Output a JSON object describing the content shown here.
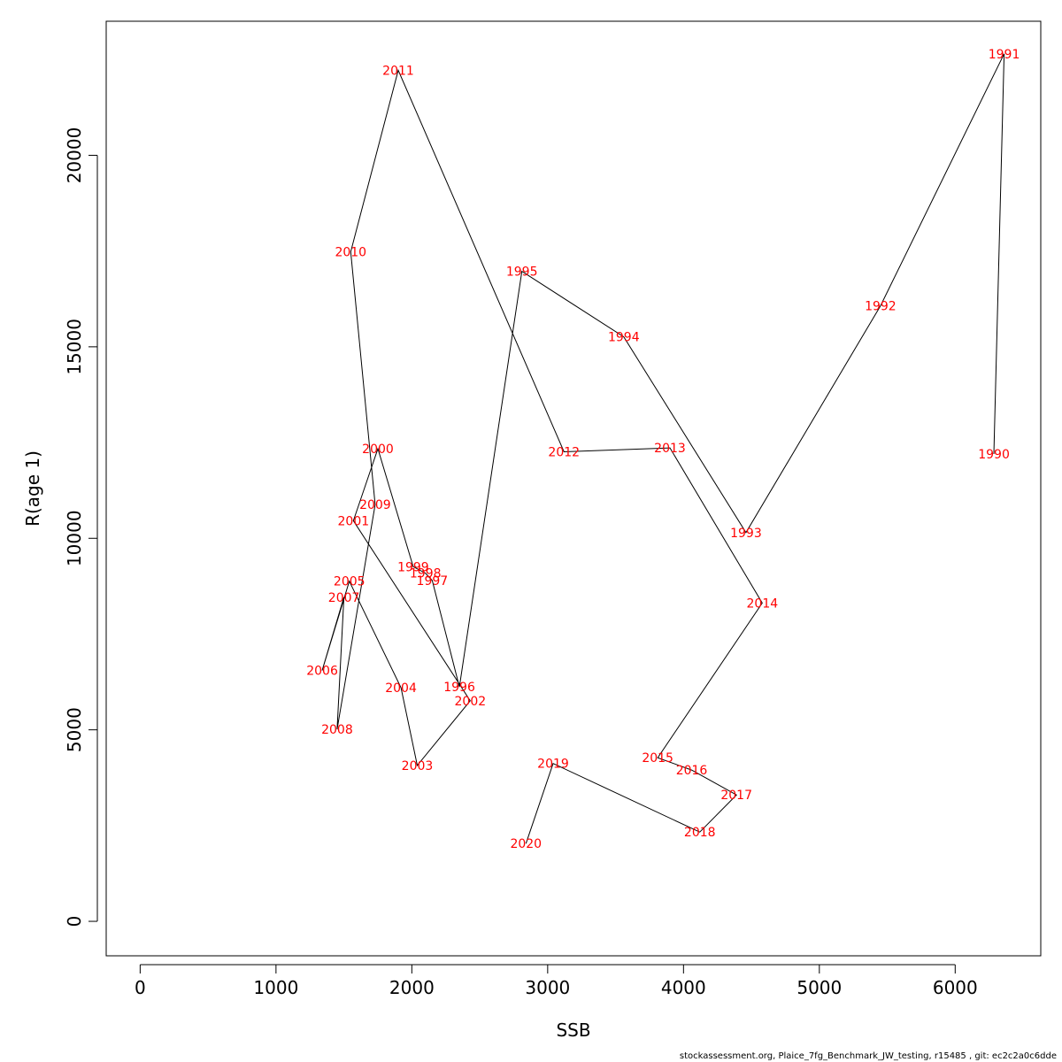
{
  "chart_data": {
    "type": "line",
    "xlabel": "SSB",
    "ylabel": "R(age 1)",
    "xlim": [
      -250,
      6630
    ],
    "ylim": [
      -900,
      23500
    ],
    "xticks": [
      0,
      1000,
      2000,
      3000,
      4000,
      5000,
      6000
    ],
    "yticks": [
      0,
      5000,
      10000,
      15000,
      20000
    ],
    "grid": false,
    "line_color": "#000000",
    "label_color": "#ff0000",
    "points": [
      {
        "label": "1990",
        "x": 6285,
        "y": 12200
      },
      {
        "label": "1991",
        "x": 6360,
        "y": 22650
      },
      {
        "label": "1992",
        "x": 5450,
        "y": 16070
      },
      {
        "label": "1993",
        "x": 4460,
        "y": 10150
      },
      {
        "label": "1994",
        "x": 3560,
        "y": 15260
      },
      {
        "label": "1995",
        "x": 2810,
        "y": 16970
      },
      {
        "label": "1996",
        "x": 2350,
        "y": 6120
      },
      {
        "label": "1997",
        "x": 2150,
        "y": 8900
      },
      {
        "label": "1998",
        "x": 2100,
        "y": 9090
      },
      {
        "label": "1999",
        "x": 2010,
        "y": 9260
      },
      {
        "label": "2000",
        "x": 1750,
        "y": 12340
      },
      {
        "label": "2001",
        "x": 1570,
        "y": 10460
      },
      {
        "label": "2002",
        "x": 2430,
        "y": 5760
      },
      {
        "label": "2003",
        "x": 2040,
        "y": 4070
      },
      {
        "label": "2004",
        "x": 1920,
        "y": 6100
      },
      {
        "label": "2005",
        "x": 1540,
        "y": 8880
      },
      {
        "label": "2006",
        "x": 1340,
        "y": 6550
      },
      {
        "label": "2007",
        "x": 1500,
        "y": 8460
      },
      {
        "label": "2008",
        "x": 1450,
        "y": 5010
      },
      {
        "label": "2009",
        "x": 1730,
        "y": 10880
      },
      {
        "label": "2010",
        "x": 1550,
        "y": 17480
      },
      {
        "label": "2011",
        "x": 1900,
        "y": 22220
      },
      {
        "label": "2012",
        "x": 3120,
        "y": 12260
      },
      {
        "label": "2013",
        "x": 3900,
        "y": 12360
      },
      {
        "label": "2014",
        "x": 4580,
        "y": 8310
      },
      {
        "label": "2015",
        "x": 3810,
        "y": 4270
      },
      {
        "label": "2016",
        "x": 4060,
        "y": 3950
      },
      {
        "label": "2017",
        "x": 4390,
        "y": 3300
      },
      {
        "label": "2018",
        "x": 4120,
        "y": 2330
      },
      {
        "label": "2019",
        "x": 3040,
        "y": 4120
      },
      {
        "label": "2020",
        "x": 2840,
        "y": 2030
      }
    ]
  },
  "footer": {
    "caption": "stockassessment.org, Plaice_7fg_Benchmark_JW_testing, r15485 , git: ec2c2a0c6dde"
  }
}
